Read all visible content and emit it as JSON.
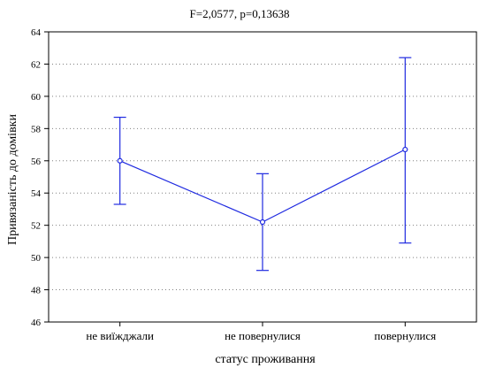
{
  "chart_data": {
    "type": "line",
    "title": "F=2,0577, p=0,13638",
    "xlabel": "статус проживання",
    "ylabel": "Привязаність до домівки",
    "categories": [
      "не виїжджали",
      "не повернулися",
      "повернулися"
    ],
    "series": [
      {
        "values": [
          56.0,
          52.2,
          56.7
        ],
        "lower": [
          53.3,
          49.2,
          50.9
        ],
        "upper": [
          58.7,
          55.2,
          62.4
        ]
      }
    ],
    "ylim": [
      46,
      64
    ],
    "yticks": [
      "46",
      "48",
      "50",
      "52",
      "54",
      "56",
      "58",
      "60",
      "62",
      "64"
    ],
    "grid": true,
    "colors": {
      "series": "#1f2ae0",
      "grid": "#808080",
      "axis": "#000000"
    }
  }
}
